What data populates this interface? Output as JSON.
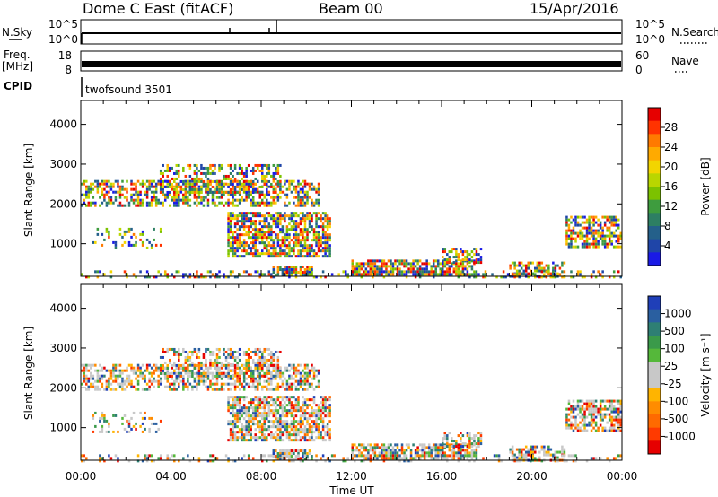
{
  "header": {
    "title": "Dome C East (fitACF)",
    "beam": "Beam 00",
    "date": "15/Apr/2016"
  },
  "strips": {
    "nsky_label": "N.Sky",
    "nsky_ticks": [
      "10^5",
      "10^0"
    ],
    "nsearch_label": "N.Search",
    "nsearch_ticks": [
      "10^5",
      "10^0"
    ],
    "freq_label": "Freq.",
    "freq_unit": "[MHz]",
    "freq_ticks": [
      "18",
      "8"
    ],
    "nave_label": "Nave",
    "nave_ticks": [
      "60",
      "0"
    ],
    "cpid_label": "CPID",
    "cpid_value": "twofsound 3501"
  },
  "colorbars": {
    "power": {
      "label": "Power [dB]",
      "ticks": [
        "28",
        "24",
        "20",
        "16",
        "12",
        "8",
        "4"
      ],
      "colors": [
        "#e60000",
        "#ff3300",
        "#ff7a00",
        "#ffaa00",
        "#f2d500",
        "#b9d600",
        "#7cc200",
        "#3e9c3e",
        "#2d7f63",
        "#24608a",
        "#1f45a8",
        "#1a1ae6"
      ]
    },
    "velocity": {
      "label": "Velocity [m s⁻¹]",
      "ticks": [
        "1000",
        "500",
        "100",
        "25",
        "-25",
        "-100",
        "-500",
        "-1000"
      ],
      "colors": [
        "#1f3fb8",
        "#2a5fa0",
        "#2e7f74",
        "#3a9a4a",
        "#55b83a",
        "#c8c8c8",
        "#c8c8c8",
        "#ffb400",
        "#ff8c00",
        "#ff6a00",
        "#ff3a00",
        "#e60000"
      ]
    }
  },
  "time_axis": {
    "label": "Time UT",
    "ticks": [
      "00:00",
      "04:00",
      "08:00",
      "12:00",
      "16:00",
      "20:00",
      "00:00"
    ]
  },
  "chart_data": [
    {
      "type": "heatmap",
      "name": "power-panel",
      "ylabel": "Slant Range [km]",
      "xlabel": "Time UT",
      "xlim_hours": [
        0,
        24
      ],
      "ylim": [
        180,
        4600
      ],
      "yticks": [
        1000,
        2000,
        3000,
        4000
      ],
      "colorbar": "Power [dB]",
      "scatter_regions": [
        {
          "t0": 0.0,
          "t1": 10.5,
          "r0": 1950,
          "r1": 2600,
          "color": "mixed",
          "density": 0.55
        },
        {
          "t0": 3.5,
          "t1": 8.8,
          "r0": 2300,
          "r1": 3000,
          "color": "mixed",
          "density": 0.5
        },
        {
          "t0": 0.5,
          "t1": 3.5,
          "r0": 900,
          "r1": 1400,
          "color": "mixed",
          "density": 0.25
        },
        {
          "t0": 6.5,
          "t1": 11.0,
          "r0": 700,
          "r1": 1800,
          "color": "mixed",
          "density": 0.7
        },
        {
          "t0": 8.5,
          "t1": 10.2,
          "r0": 200,
          "r1": 450,
          "color": "mixed",
          "density": 0.8
        },
        {
          "t0": 12.0,
          "t1": 17.5,
          "r0": 200,
          "r1": 600,
          "color": "mixed",
          "density": 0.75
        },
        {
          "t0": 16.0,
          "t1": 17.8,
          "r0": 500,
          "r1": 900,
          "color": "mixed",
          "density": 0.55
        },
        {
          "t0": 19.0,
          "t1": 21.5,
          "r0": 200,
          "r1": 550,
          "color": "mixed",
          "density": 0.6
        },
        {
          "t0": 21.5,
          "t1": 24.0,
          "r0": 900,
          "r1": 1700,
          "color": "mixed",
          "density": 0.6
        },
        {
          "t0": 0.0,
          "t1": 24.0,
          "r0": 180,
          "r1": 330,
          "color": "mixed",
          "density": 0.25
        }
      ]
    },
    {
      "type": "heatmap",
      "name": "velocity-panel",
      "ylabel": "Slant Range [km]",
      "xlabel": "Time UT",
      "xlim_hours": [
        0,
        24
      ],
      "ylim": [
        180,
        4600
      ],
      "yticks": [
        1000,
        2000,
        3000,
        4000
      ],
      "colorbar": "Velocity [m s⁻¹]",
      "scatter_regions": [
        {
          "t0": 0.0,
          "t1": 10.5,
          "r0": 1950,
          "r1": 2600,
          "color": "mixed",
          "density": 0.55
        },
        {
          "t0": 3.5,
          "t1": 8.8,
          "r0": 2300,
          "r1": 3000,
          "color": "mixed",
          "density": 0.5
        },
        {
          "t0": 0.5,
          "t1": 3.5,
          "r0": 900,
          "r1": 1400,
          "color": "mixed",
          "density": 0.25
        },
        {
          "t0": 6.5,
          "t1": 11.0,
          "r0": 700,
          "r1": 1800,
          "color": "mixed",
          "density": 0.7
        },
        {
          "t0": 8.5,
          "t1": 10.2,
          "r0": 200,
          "r1": 450,
          "color": "mixed",
          "density": 0.8
        },
        {
          "t0": 12.0,
          "t1": 17.5,
          "r0": 200,
          "r1": 600,
          "color": "mixed",
          "density": 0.75
        },
        {
          "t0": 16.0,
          "t1": 17.8,
          "r0": 500,
          "r1": 900,
          "color": "mixed",
          "density": 0.55
        },
        {
          "t0": 19.0,
          "t1": 21.5,
          "r0": 200,
          "r1": 550,
          "color": "mixed",
          "density": 0.6
        },
        {
          "t0": 21.5,
          "t1": 24.0,
          "r0": 900,
          "r1": 1700,
          "color": "mixed",
          "density": 0.6
        },
        {
          "t0": 0.0,
          "t1": 24.0,
          "r0": 180,
          "r1": 330,
          "color": "mixed",
          "density": 0.25
        }
      ]
    }
  ]
}
